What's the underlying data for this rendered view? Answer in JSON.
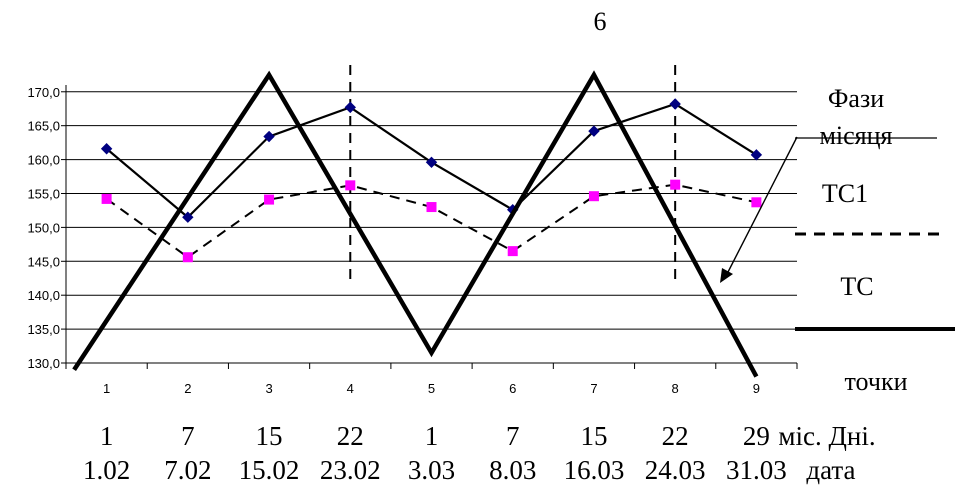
{
  "chart_data": {
    "type": "line",
    "title": "6",
    "categories": [
      "1",
      "2",
      "3",
      "4",
      "5",
      "6",
      "7",
      "8",
      "9"
    ],
    "days_row": {
      "values": [
        "1",
        "7",
        "15",
        "22",
        "1",
        "7",
        "15",
        "22",
        "29"
      ],
      "caption": "міс. Дні."
    },
    "dates_row": {
      "values": [
        "1.02",
        "7.02",
        "15.02",
        "23.02",
        "3.03",
        "8.03",
        "16.03",
        "24.03",
        "31.03"
      ],
      "caption": "дата"
    },
    "yticks": [
      "130,0",
      "135,0",
      "140,0",
      "145,0",
      "150,0",
      "155,0",
      "160,0",
      "165,0",
      "170,0"
    ],
    "ylim": [
      130,
      171
    ],
    "grid": true,
    "series": [
      {
        "name": "TC",
        "style": "solid-diamond",
        "color": "#000000",
        "marker_color": "#000080",
        "values": [
          161.6,
          151.5,
          163.4,
          167.7,
          159.6,
          152.6,
          164.2,
          168.2,
          160.7
        ]
      },
      {
        "name": "TC1",
        "style": "dashed-square",
        "color": "#000000",
        "marker_color": "#ff00ff",
        "values": [
          154.2,
          145.6,
          154.1,
          156.2,
          153.0,
          146.5,
          154.6,
          156.3,
          153.7
        ]
      }
    ],
    "moon_phase_line": {
      "x": [
        0.6,
        3.0,
        5.0,
        7.0,
        9.0
      ],
      "y": [
        129.0,
        172.5,
        131.5,
        172.5,
        128.0
      ]
    },
    "new_moon_markers": [
      4,
      8
    ],
    "legend": {
      "phase_label_line1": "Фази",
      "phase_label_line2": "місяця",
      "tc1_label": "ТС1",
      "tc_label": "ТС",
      "points_label": "точки"
    }
  }
}
